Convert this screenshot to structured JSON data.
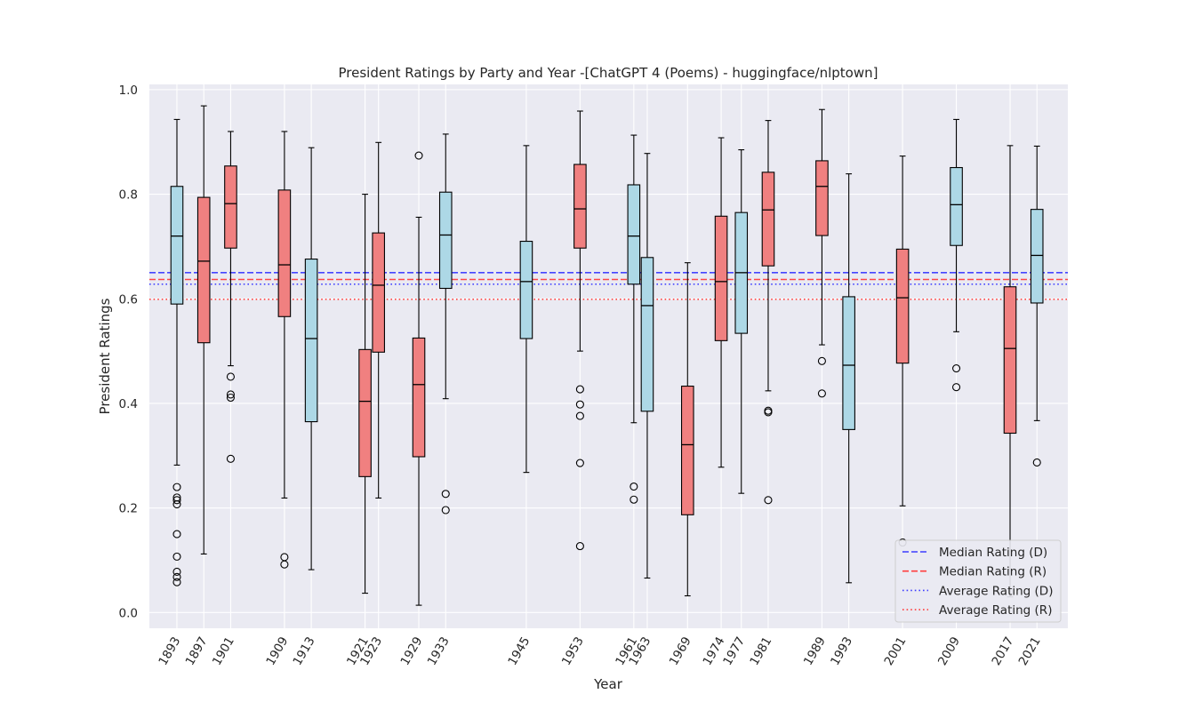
{
  "chart_data": {
    "type": "box",
    "title": "President Ratings by Party and Year -[ChatGPT 4 (Poems) - huggingface/nlptown]",
    "xlabel": "Year",
    "ylabel": "President Ratings",
    "ylim": [
      -0.03,
      1.01
    ],
    "xlim": [
      1888.9,
      2025.6
    ],
    "yticks": [
      0.0,
      0.2,
      0.4,
      0.6,
      0.8,
      1.0
    ],
    "ytick_labels": [
      "0.0",
      "0.2",
      "0.4",
      "0.6",
      "0.8",
      "1.0"
    ],
    "grid": true,
    "legend_position": "lower right",
    "colors": {
      "D_box": "#add8e6",
      "R_box": "#f08080",
      "median_D": "#3d3dff",
      "median_R": "#ff3d3d",
      "background": "#eaeaf2",
      "grid": "#ffffff"
    },
    "boxes": [
      {
        "year": "1893",
        "x": 1893,
        "party": "D",
        "whislo": 0.282,
        "q1": 0.59,
        "med": 0.72,
        "q3": 0.815,
        "whishi": 0.943,
        "fliers": [
          0.24,
          0.22,
          0.215,
          0.207,
          0.15,
          0.107,
          0.078,
          0.068,
          0.058
        ]
      },
      {
        "year": "1897",
        "x": 1897,
        "party": "R",
        "whislo": 0.112,
        "q1": 0.516,
        "med": 0.672,
        "q3": 0.794,
        "whishi": 0.969,
        "fliers": []
      },
      {
        "year": "1901",
        "x": 1901,
        "party": "R",
        "whislo": 0.472,
        "q1": 0.697,
        "med": 0.782,
        "q3": 0.854,
        "whishi": 0.92,
        "fliers": [
          0.451,
          0.417,
          0.411,
          0.294
        ]
      },
      {
        "year": "1909",
        "x": 1909,
        "party": "R",
        "whislo": 0.219,
        "q1": 0.566,
        "med": 0.665,
        "q3": 0.808,
        "whishi": 0.92,
        "fliers": [
          0.106,
          0.092
        ]
      },
      {
        "year": "1913",
        "x": 1913,
        "party": "D",
        "whislo": 0.082,
        "q1": 0.365,
        "med": 0.524,
        "q3": 0.676,
        "whishi": 0.889,
        "fliers": []
      },
      {
        "year": "1921",
        "x": 1921,
        "party": "R",
        "whislo": 0.037,
        "q1": 0.26,
        "med": 0.404,
        "q3": 0.503,
        "whishi": 0.8,
        "fliers": []
      },
      {
        "year": "1923",
        "x": 1923,
        "party": "R",
        "whislo": 0.219,
        "q1": 0.498,
        "med": 0.626,
        "q3": 0.726,
        "whishi": 0.899,
        "fliers": []
      },
      {
        "year": "1929",
        "x": 1929,
        "party": "R",
        "whislo": 0.014,
        "q1": 0.298,
        "med": 0.436,
        "q3": 0.525,
        "whishi": 0.756,
        "fliers": [
          0.874
        ]
      },
      {
        "year": "1933",
        "x": 1933,
        "party": "D",
        "whislo": 0.409,
        "q1": 0.62,
        "med": 0.722,
        "q3": 0.804,
        "whishi": 0.915,
        "fliers": [
          0.227,
          0.196
        ]
      },
      {
        "year": "1945",
        "x": 1945,
        "party": "D",
        "whislo": 0.268,
        "q1": 0.524,
        "med": 0.633,
        "q3": 0.71,
        "whishi": 0.893,
        "fliers": []
      },
      {
        "year": "1953",
        "x": 1953,
        "party": "R",
        "whislo": 0.5,
        "q1": 0.697,
        "med": 0.772,
        "q3": 0.857,
        "whishi": 0.959,
        "fliers": [
          0.427,
          0.398,
          0.376,
          0.286,
          0.127
        ]
      },
      {
        "year": "1961",
        "x": 1961,
        "party": "D",
        "whislo": 0.363,
        "q1": 0.628,
        "med": 0.72,
        "q3": 0.818,
        "whishi": 0.913,
        "fliers": [
          0.241,
          0.216
        ]
      },
      {
        "year": "1963",
        "x": 1963,
        "party": "D",
        "whislo": 0.066,
        "q1": 0.385,
        "med": 0.587,
        "q3": 0.679,
        "whishi": 0.878,
        "fliers": []
      },
      {
        "year": "1969",
        "x": 1969,
        "party": "R",
        "whislo": 0.032,
        "q1": 0.187,
        "med": 0.321,
        "q3": 0.433,
        "whishi": 0.669,
        "fliers": []
      },
      {
        "year": "1974",
        "x": 1974,
        "party": "R",
        "whislo": 0.278,
        "q1": 0.52,
        "med": 0.633,
        "q3": 0.758,
        "whishi": 0.908,
        "fliers": []
      },
      {
        "year": "1977",
        "x": 1977,
        "party": "D",
        "whislo": 0.228,
        "q1": 0.534,
        "med": 0.65,
        "q3": 0.765,
        "whishi": 0.885,
        "fliers": []
      },
      {
        "year": "1981",
        "x": 1981,
        "party": "R",
        "whislo": 0.424,
        "q1": 0.663,
        "med": 0.77,
        "q3": 0.842,
        "whishi": 0.941,
        "fliers": [
          0.386,
          0.383,
          0.215
        ]
      },
      {
        "year": "1989",
        "x": 1989,
        "party": "R",
        "whislo": 0.512,
        "q1": 0.721,
        "med": 0.815,
        "q3": 0.864,
        "whishi": 0.962,
        "fliers": [
          0.481,
          0.419
        ]
      },
      {
        "year": "1993",
        "x": 1993,
        "party": "D",
        "whislo": 0.057,
        "q1": 0.35,
        "med": 0.473,
        "q3": 0.604,
        "whishi": 0.839,
        "fliers": []
      },
      {
        "year": "2001",
        "x": 2001,
        "party": "R",
        "whislo": 0.204,
        "q1": 0.477,
        "med": 0.602,
        "q3": 0.695,
        "whishi": 0.873,
        "fliers": [
          0.134
        ]
      },
      {
        "year": "2009",
        "x": 2009,
        "party": "D",
        "whislo": 0.537,
        "q1": 0.702,
        "med": 0.78,
        "q3": 0.851,
        "whishi": 0.943,
        "fliers": [
          0.467,
          0.431
        ]
      },
      {
        "year": "2017",
        "x": 2017,
        "party": "R",
        "whislo": 0.03,
        "q1": 0.343,
        "med": 0.505,
        "q3": 0.623,
        "whishi": 0.893,
        "fliers": []
      },
      {
        "year": "2021",
        "x": 2021,
        "party": "D",
        "whislo": 0.367,
        "q1": 0.592,
        "med": 0.683,
        "q3": 0.771,
        "whishi": 0.892,
        "fliers": [
          0.287
        ]
      }
    ],
    "reference_lines": [
      {
        "name": "Median Rating (D)",
        "value": 0.65,
        "color": "#3d3dff",
        "style": "dashed"
      },
      {
        "name": "Median Rating (R)",
        "value": 0.637,
        "color": "#ff3d3d",
        "style": "dashed"
      },
      {
        "name": "Average Rating (D)",
        "value": 0.628,
        "color": "#3d3dff",
        "style": "dotted"
      },
      {
        "name": "Average Rating (R)",
        "value": 0.599,
        "color": "#ff3d3d",
        "style": "dotted"
      }
    ]
  }
}
